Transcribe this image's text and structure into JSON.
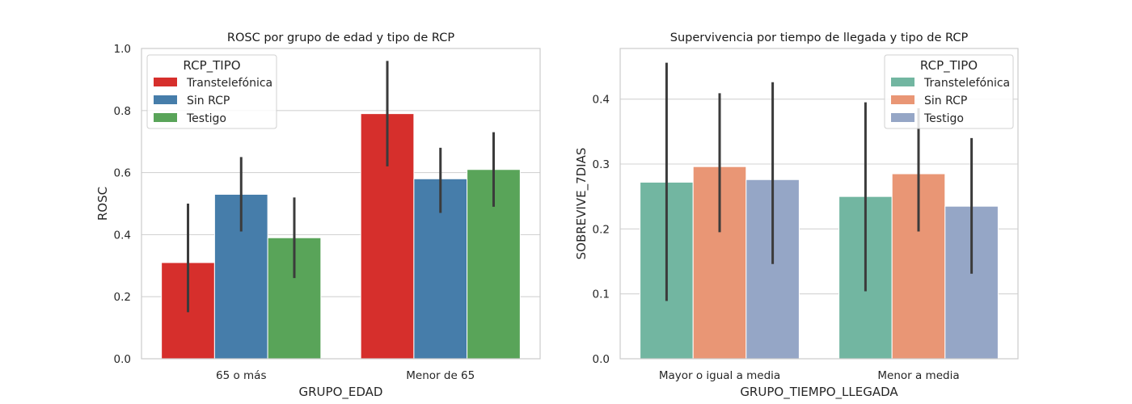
{
  "chart_data": [
    {
      "type": "bar",
      "title": "ROSC por grupo de edad y tipo de RCP",
      "xlabel": "GRUPO_EDAD",
      "ylabel": "ROSC",
      "categories": [
        "65 o más",
        "Menor de 65"
      ],
      "ylim": [
        0,
        1.0
      ],
      "yticks": [
        0.0,
        0.2,
        0.4,
        0.6,
        0.8,
        1.0
      ],
      "ytick_labels": [
        "0.0",
        "0.2",
        "0.4",
        "0.6",
        "0.8",
        "1.0"
      ],
      "grid": "horizontal",
      "legend": {
        "title": "RCP_TIPO",
        "placement": "upper-left"
      },
      "series": [
        {
          "name": "Transtelefónica",
          "color": "#d62f2c",
          "values": [
            0.31,
            0.79
          ],
          "ci_low": [
            0.15,
            0.62
          ],
          "ci_high": [
            0.5,
            0.96
          ]
        },
        {
          "name": "Sin RCP",
          "color": "#467daa",
          "values": [
            0.53,
            0.58
          ],
          "ci_low": [
            0.41,
            0.47
          ],
          "ci_high": [
            0.65,
            0.68
          ]
        },
        {
          "name": "Testigo",
          "color": "#59a459",
          "values": [
            0.39,
            0.61
          ],
          "ci_low": [
            0.26,
            0.49
          ],
          "ci_high": [
            0.52,
            0.73
          ]
        }
      ]
    },
    {
      "type": "bar",
      "title": "Supervivencia por tiempo de llegada y tipo de RCP",
      "xlabel": "GRUPO_TIEMPO_LLEGADA",
      "ylabel": "SOBREVIVE_7DIAS",
      "categories": [
        "Mayor o igual a media",
        "Menor a media"
      ],
      "ylim": [
        0,
        0.478
      ],
      "yticks": [
        0.0,
        0.1,
        0.2,
        0.3,
        0.4
      ],
      "ytick_labels": [
        "0.0",
        "0.1",
        "0.2",
        "0.3",
        "0.4"
      ],
      "grid": "horizontal",
      "legend": {
        "title": "RCP_TIPO",
        "placement": "upper-right"
      },
      "series": [
        {
          "name": "Transtelefónica",
          "color": "#72b6a1",
          "values": [
            0.272,
            0.25
          ],
          "ci_low": [
            0.089,
            0.104
          ],
          "ci_high": [
            0.456,
            0.395
          ]
        },
        {
          "name": "Sin RCP",
          "color": "#e99675",
          "values": [
            0.296,
            0.285
          ],
          "ci_low": [
            0.195,
            0.196
          ],
          "ci_high": [
            0.409,
            0.386
          ]
        },
        {
          "name": "Testigo",
          "color": "#95a6c6",
          "values": [
            0.276,
            0.235
          ],
          "ci_low": [
            0.146,
            0.131
          ],
          "ci_high": [
            0.426,
            0.34
          ]
        }
      ]
    }
  ]
}
